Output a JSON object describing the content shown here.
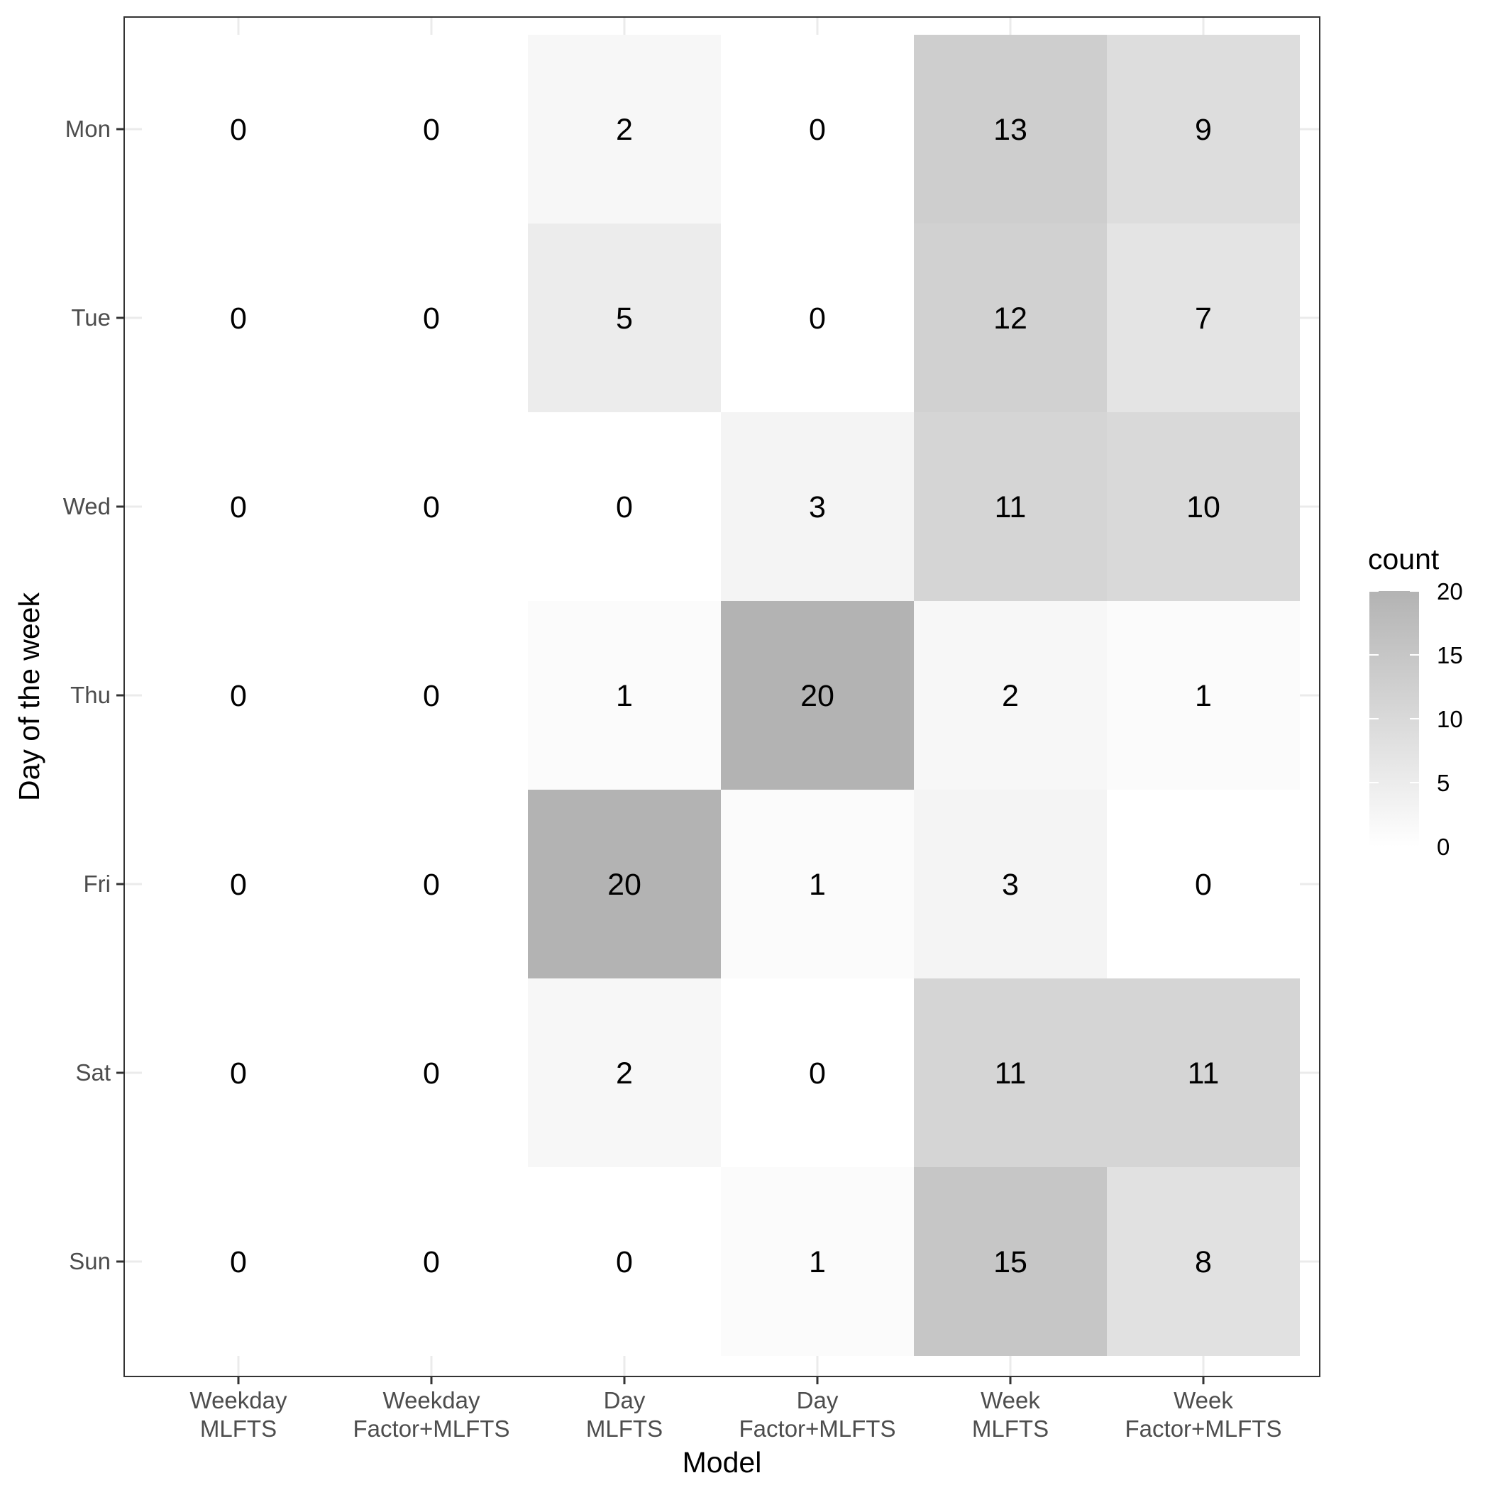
{
  "chart_data": {
    "type": "heatmap",
    "xlabel": "Model",
    "ylabel": "Day of the week",
    "x_categories": [
      [
        "Weekday",
        "MLFTS"
      ],
      [
        "Weekday",
        "Factor+MLFTS"
      ],
      [
        "Day",
        "MLFTS"
      ],
      [
        "Day",
        "Factor+MLFTS"
      ],
      [
        "Week",
        "MLFTS"
      ],
      [
        "Week",
        "Factor+MLFTS"
      ]
    ],
    "y_categories": [
      "Mon",
      "Tue",
      "Wed",
      "Thu",
      "Fri",
      "Sat",
      "Sun"
    ],
    "values": [
      [
        0,
        0,
        2,
        0,
        13,
        9
      ],
      [
        0,
        0,
        5,
        0,
        12,
        7
      ],
      [
        0,
        0,
        0,
        3,
        11,
        10
      ],
      [
        0,
        0,
        1,
        20,
        2,
        1
      ],
      [
        0,
        0,
        20,
        1,
        3,
        0
      ],
      [
        0,
        0,
        2,
        0,
        11,
        11
      ],
      [
        0,
        0,
        0,
        1,
        15,
        8
      ]
    ],
    "legend": {
      "title": "count",
      "range": [
        0,
        20
      ],
      "breaks": [
        0,
        5,
        10,
        15,
        20
      ],
      "low_color": "#ffffff",
      "high_color": "#b3b3b3",
      "position": "right"
    },
    "grid": true
  }
}
